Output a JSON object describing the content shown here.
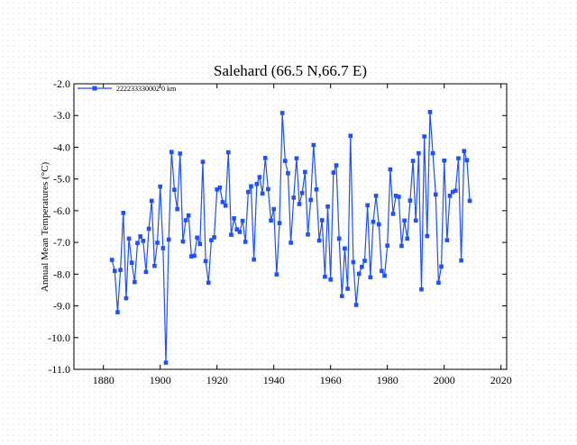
{
  "chart_data": {
    "type": "line",
    "title": "Salehard (66.5 N,66.7 E)",
    "xlabel": "",
    "ylabel": "Annual Mean Temperatures (°C)",
    "xlim": [
      1868,
      2021
    ],
    "ylim": [
      -11.0,
      -2.0
    ],
    "xticks": [
      1880,
      1900,
      1920,
      1940,
      1960,
      1980,
      2000,
      2020
    ],
    "yticks": [
      -2.0,
      -3.0,
      -4.0,
      -5.0,
      -6.0,
      -7.0,
      -8.0,
      -9.0,
      -10.0,
      -11.0
    ],
    "xtick_labels": [
      "1880",
      "1900",
      "1920",
      "1940",
      "1960",
      "1980",
      "2000",
      "2020"
    ],
    "ytick_labels": [
      "-2.0",
      "-3.0",
      "-4.0",
      "-5.0",
      "-6.0",
      "-7.0",
      "-8.0",
      "-9.0",
      "-10.0",
      "-11.0"
    ],
    "grid": false,
    "legend_position": "top-left",
    "series": [
      {
        "name": "222233330002  0 km",
        "color": "#1f4fff",
        "x_start": 1883,
        "values": [
          -7.55,
          -7.9,
          -9.2,
          -7.87,
          -6.07,
          -8.76,
          -6.88,
          -7.64,
          -8.25,
          -7.02,
          -6.81,
          -6.95,
          -7.93,
          -6.57,
          -5.69,
          -7.74,
          -7.01,
          -5.24,
          -7.18,
          -10.79,
          -6.91,
          -4.15,
          -5.34,
          -5.95,
          -4.2,
          -6.97,
          -6.3,
          -6.15,
          -7.44,
          -7.42,
          -6.85,
          -7.05,
          -4.46,
          -7.59,
          -8.27,
          -6.93,
          -6.84,
          -5.33,
          -5.27,
          -5.73,
          -5.84,
          -4.16,
          -6.76,
          -6.24,
          -6.59,
          -6.67,
          -6.32,
          -6.98,
          -5.41,
          -5.23,
          -7.54,
          -5.16,
          -4.94,
          -5.46,
          -4.34,
          -5.32,
          -6.31,
          -5.95,
          -8.01,
          -6.39,
          -2.92,
          -4.43,
          -4.82,
          -7.01,
          -5.59,
          -4.35,
          -5.79,
          -5.44,
          -4.78,
          -6.75,
          -5.66,
          -3.93,
          -5.33,
          -6.94,
          -6.3,
          -8.08,
          -5.87,
          -8.17,
          -4.8,
          -4.57,
          -6.88,
          -8.69,
          -7.19,
          -8.46,
          -3.64,
          -7.62,
          -8.97,
          -7.99,
          -7.77,
          -7.58,
          -5.83,
          -8.1,
          -6.35,
          -5.53,
          -6.43,
          -7.9,
          -8.05,
          -7.1,
          -4.7,
          -6.1,
          -5.53,
          -5.56,
          -7.11,
          -6.31,
          -6.88,
          -5.68,
          -4.43,
          -6.31,
          -4.19,
          -8.48,
          -3.66,
          -6.8,
          -2.89,
          -4.19,
          -5.49,
          -8.27,
          -7.76,
          -4.42,
          -6.93,
          -5.53,
          -5.41,
          -5.37,
          -4.35,
          -7.57,
          -4.12,
          -4.41,
          -5.69
        ]
      }
    ]
  }
}
